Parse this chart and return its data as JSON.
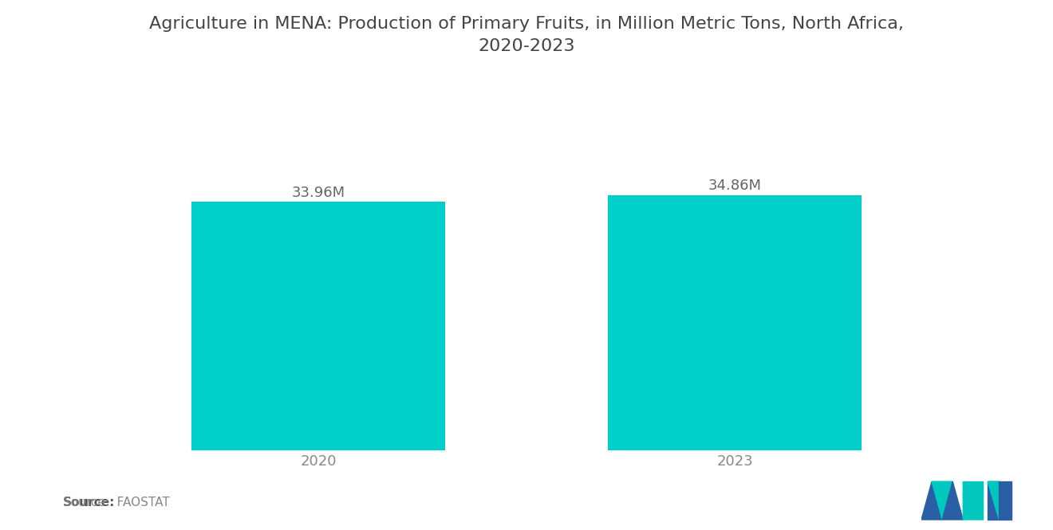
{
  "title": "Agriculture in MENA: Production of Primary Fruits, in Million Metric Tons, North Africa,\n2020-2023",
  "categories": [
    "2020",
    "2023"
  ],
  "values": [
    33.96,
    34.86
  ],
  "labels": [
    "33.96M",
    "34.86M"
  ],
  "bar_color": "#00CEC9",
  "background_color": "#FFFFFF",
  "source_bold": "Source:",
  "source_normal": "  FAOSTAT",
  "title_fontsize": 16,
  "label_fontsize": 13,
  "tick_fontsize": 13,
  "source_fontsize": 11,
  "bar_width": 0.28,
  "x_positions": [
    0.27,
    0.73
  ],
  "xlim": [
    0,
    1
  ],
  "ylim": [
    0,
    42
  ],
  "logo_blue": "#2B5FA5",
  "logo_teal": "#00C8BE"
}
